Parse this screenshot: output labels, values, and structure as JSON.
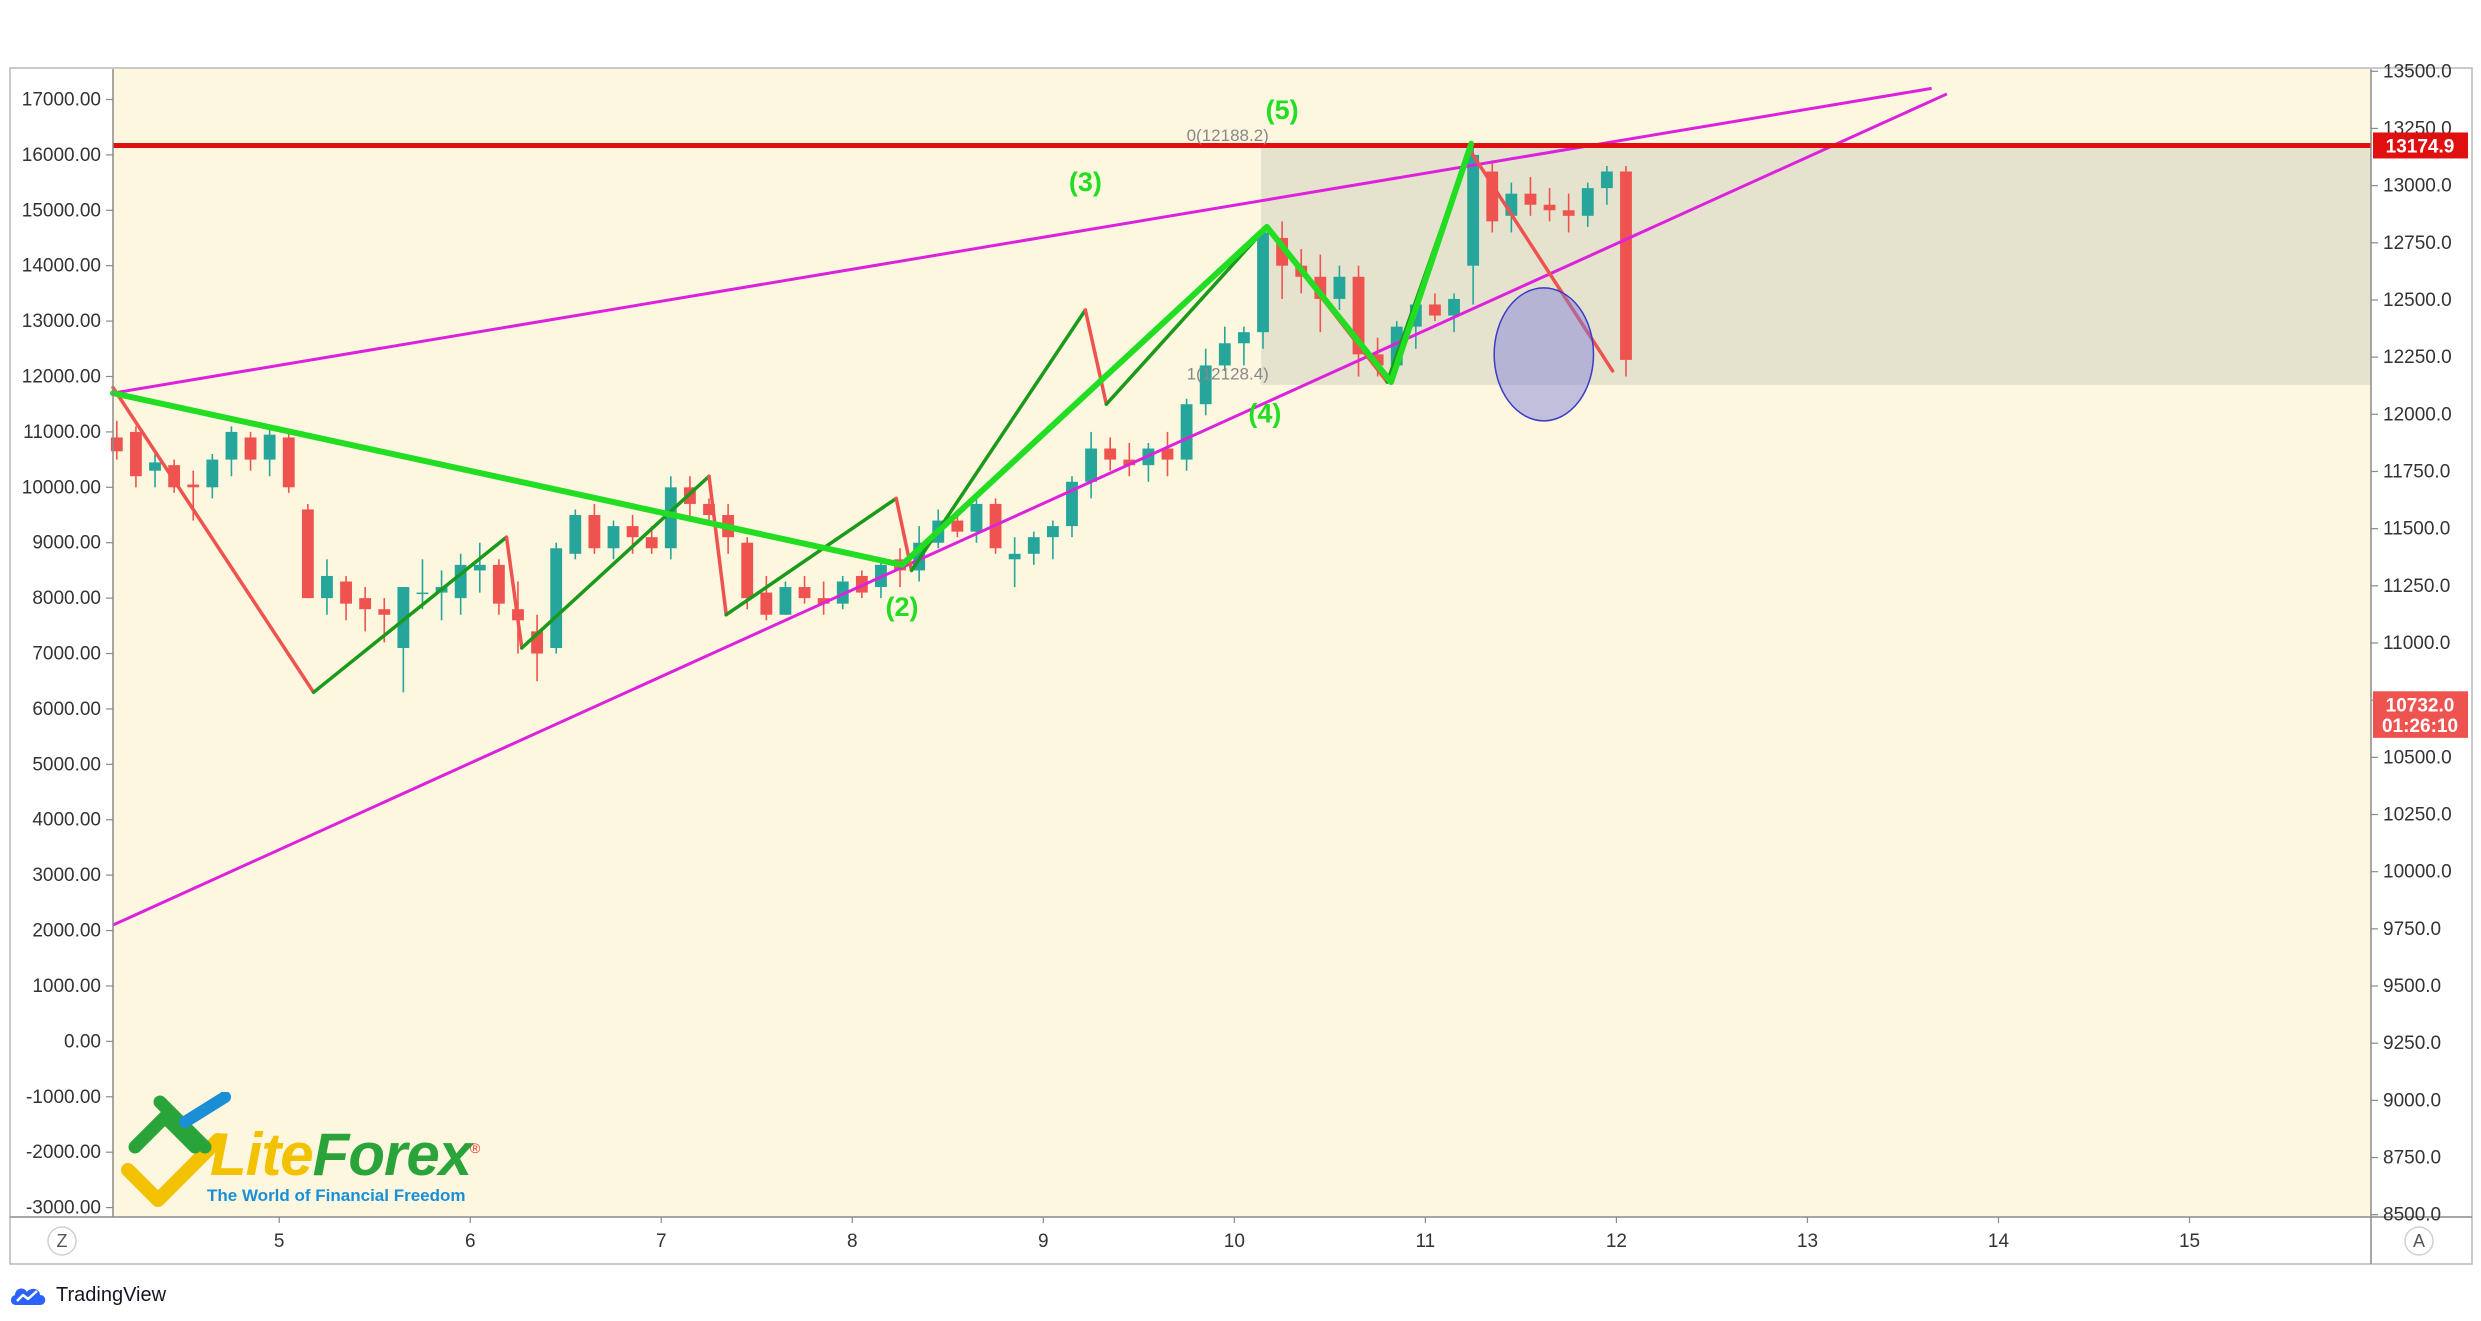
{
  "chart_data": {
    "type": "candlestick",
    "x_ticks": [
      "5",
      "6",
      "7",
      "8",
      "9",
      "10",
      "11",
      "12",
      "13",
      "14",
      "15"
    ],
    "xlim": [
      4.13,
      15.95
    ],
    "left_axis": {
      "ticks": [
        "17000.00",
        "16000.00",
        "15000.00",
        "14000.00",
        "13000.00",
        "12000.00",
        "11000.00",
        "10000.00",
        "9000.00",
        "8000.00",
        "7000.00",
        "6000.00",
        "5000.00",
        "4000.00",
        "3000.00",
        "2000.00",
        "1000.00",
        "0.00",
        "-1000.00",
        "-2000.00",
        "-3000.00"
      ],
      "ylim": [
        -3170,
        17550
      ]
    },
    "right_axis": {
      "ticks": [
        "13500.0",
        "13250.0",
        "13000.0",
        "12750.0",
        "12500.0",
        "12250.0",
        "12000.0",
        "11750.0",
        "11500.0",
        "11250.0",
        "11000.0",
        "10750.0",
        "10500.0",
        "10250.0",
        "10000.0",
        "9750.0",
        "9500.0",
        "9250.0",
        "9000.0",
        "8750.0",
        "8500.0"
      ],
      "ylim": [
        8490,
        13510
      ]
    },
    "candles": [
      [
        4.15,
        10900,
        11200,
        10500,
        10650
      ],
      [
        4.25,
        11000,
        11100,
        10000,
        10200
      ],
      [
        4.35,
        10300,
        10600,
        10000,
        10450
      ],
      [
        4.45,
        10400,
        10500,
        9900,
        10000
      ],
      [
        4.55,
        10050,
        10300,
        9400,
        10000
      ],
      [
        4.65,
        10000,
        10600,
        9800,
        10500
      ],
      [
        4.75,
        10500,
        11100,
        10200,
        11000
      ],
      [
        4.85,
        10900,
        11000,
        10300,
        10500
      ],
      [
        4.95,
        10500,
        11100,
        10200,
        10950
      ],
      [
        5.05,
        10900,
        11000,
        9900,
        10000
      ],
      [
        5.15,
        9600,
        9700,
        8000,
        8000
      ],
      [
        5.25,
        8000,
        8700,
        7700,
        8400
      ],
      [
        5.35,
        8300,
        8400,
        7600,
        7900
      ],
      [
        5.45,
        8000,
        8200,
        7400,
        7800
      ],
      [
        5.55,
        7800,
        8000,
        7200,
        7700
      ],
      [
        5.65,
        7100,
        8200,
        6300,
        8200
      ],
      [
        5.75,
        8100,
        8700,
        7800,
        8100
      ],
      [
        5.85,
        8100,
        8500,
        7600,
        8200
      ],
      [
        5.95,
        8000,
        8800,
        7700,
        8600
      ],
      [
        6.05,
        8500,
        9000,
        8100,
        8600
      ],
      [
        6.15,
        8600,
        8700,
        7700,
        7900
      ],
      [
        6.25,
        7800,
        8300,
        7000,
        7600
      ],
      [
        6.35,
        7400,
        7700,
        6500,
        7000
      ],
      [
        6.45,
        7100,
        9000,
        7000,
        8900
      ],
      [
        6.55,
        8800,
        9600,
        8700,
        9500
      ],
      [
        6.65,
        9500,
        9700,
        8800,
        8900
      ],
      [
        6.75,
        8900,
        9400,
        8700,
        9300
      ],
      [
        6.85,
        9300,
        9500,
        8800,
        9100
      ],
      [
        6.95,
        9100,
        9300,
        8800,
        8900
      ],
      [
        7.05,
        8900,
        10200,
        8700,
        10000
      ],
      [
        7.15,
        10000,
        10200,
        9400,
        9700
      ],
      [
        7.25,
        9700,
        9800,
        9300,
        9500
      ],
      [
        7.35,
        9500,
        9700,
        8800,
        9100
      ],
      [
        7.45,
        9000,
        9100,
        7800,
        8000
      ],
      [
        7.55,
        8100,
        8400,
        7600,
        7700
      ],
      [
        7.65,
        7700,
        8300,
        7700,
        8200
      ],
      [
        7.75,
        8200,
        8400,
        7900,
        8000
      ],
      [
        7.85,
        8000,
        8300,
        7700,
        7900
      ],
      [
        7.95,
        7900,
        8400,
        7800,
        8300
      ],
      [
        8.05,
        8400,
        8500,
        8000,
        8100
      ],
      [
        8.15,
        8200,
        8700,
        8000,
        8600
      ],
      [
        8.25,
        8700,
        8900,
        8200,
        8500
      ],
      [
        8.35,
        8500,
        9300,
        8300,
        9000
      ],
      [
        8.45,
        9000,
        9600,
        8900,
        9400
      ],
      [
        8.55,
        9400,
        9500,
        9100,
        9200
      ],
      [
        8.65,
        9200,
        9800,
        9000,
        9700
      ],
      [
        8.75,
        9700,
        9800,
        8800,
        8900
      ],
      [
        8.85,
        8700,
        9100,
        8200,
        8800
      ],
      [
        8.95,
        8800,
        9200,
        8600,
        9100
      ],
      [
        9.05,
        9100,
        9400,
        8700,
        9300
      ],
      [
        9.15,
        9300,
        10200,
        9100,
        10100
      ],
      [
        9.25,
        10100,
        11000,
        9800,
        10700
      ],
      [
        9.35,
        10700,
        10900,
        10300,
        10500
      ],
      [
        9.45,
        10500,
        10800,
        10200,
        10400
      ],
      [
        9.55,
        10400,
        10800,
        10100,
        10700
      ],
      [
        9.65,
        10700,
        11000,
        10200,
        10500
      ],
      [
        9.75,
        10500,
        11600,
        10300,
        11500
      ],
      [
        9.85,
        11500,
        12500,
        11300,
        12200
      ],
      [
        9.95,
        12200,
        12900,
        12100,
        12600
      ],
      [
        10.05,
        12600,
        12900,
        12200,
        12800
      ],
      [
        10.15,
        12800,
        14700,
        12500,
        14600
      ],
      [
        10.25,
        14500,
        14800,
        13400,
        14000
      ],
      [
        10.35,
        14000,
        14300,
        13500,
        13800
      ],
      [
        10.45,
        13800,
        14200,
        12800,
        13400
      ],
      [
        10.55,
        13400,
        14000,
        13200,
        13800
      ],
      [
        10.65,
        13800,
        14000,
        12000,
        12400
      ],
      [
        10.75,
        12400,
        12700,
        12000,
        12200
      ],
      [
        10.85,
        12200,
        13000,
        12100,
        12900
      ],
      [
        10.95,
        12900,
        13400,
        12500,
        13300
      ],
      [
        11.05,
        13300,
        13500,
        13000,
        13100
      ],
      [
        11.15,
        13100,
        13500,
        12800,
        13400
      ],
      [
        11.25,
        14000,
        16200,
        13300,
        16000
      ],
      [
        11.35,
        15700,
        15900,
        14600,
        14800
      ],
      [
        11.45,
        14900,
        15500,
        14600,
        15300
      ],
      [
        11.55,
        15300,
        15600,
        14900,
        15100
      ],
      [
        11.65,
        15100,
        15400,
        14800,
        15000
      ],
      [
        11.75,
        15000,
        15300,
        14600,
        14900
      ],
      [
        11.85,
        14900,
        15500,
        14700,
        15400
      ],
      [
        11.95,
        15400,
        15800,
        15100,
        15700
      ],
      [
        12.05,
        15700,
        15800,
        12000,
        12300
      ]
    ],
    "waves": {
      "zigzag": [
        [
          4.13,
          11800
        ],
        [
          5.18,
          6300
        ],
        [
          6.19,
          9100
        ],
        [
          6.27,
          7100
        ],
        [
          7.25,
          10200
        ],
        [
          7.34,
          7700
        ],
        [
          8.23,
          9800
        ],
        [
          8.31,
          8500
        ],
        [
          9.22,
          13200
        ],
        [
          9.33,
          11500
        ],
        [
          10.17,
          14700
        ],
        [
          10.8,
          11900
        ],
        [
          11.23,
          16100
        ],
        [
          11.98,
          12100
        ]
      ],
      "main_path": [
        [
          4.13,
          11700
        ],
        [
          8.26,
          8600
        ],
        [
          10.17,
          14700
        ],
        [
          10.82,
          11900
        ],
        [
          11.24,
          16200
        ]
      ]
    },
    "trendlines": [
      {
        "from": [
          4.13,
          11700
        ],
        "to": [
          13.65,
          17200
        ]
      },
      {
        "from": [
          4.13,
          2100
        ],
        "to": [
          13.73,
          17100
        ]
      }
    ],
    "horizontal_line": {
      "left_value": 16170,
      "tag": "13174.9",
      "tag_color": "#e01010"
    },
    "wave_labels": [
      {
        "text": "(2)",
        "x": 8.26,
        "y": 7680
      },
      {
        "text": "(3)",
        "x": 9.22,
        "y": 15350
      },
      {
        "text": "(4)",
        "x": 10.16,
        "y": 11170
      },
      {
        "text": "(5)",
        "x": 10.25,
        "y": 16650
      }
    ],
    "fib_labels": [
      {
        "text": "0(12188.2)",
        "x": 9.75,
        "y": 16250
      },
      {
        "text": "1(12128.4)",
        "x": 9.75,
        "y": 11950
      }
    ],
    "price_tags": [
      {
        "text": "10732.0",
        "right_value": 10732,
        "color": "#ef5350"
      },
      {
        "text": "01:26:10",
        "right_value": 10642,
        "color": "#ef5350"
      }
    ],
    "shaded_zone": {
      "x_from": 10.14,
      "y_top": 16180,
      "y_bottom": 11850
    },
    "ellipse": {
      "cx": 11.62,
      "cy": 12400,
      "rx": 0.26,
      "ry": 1200
    },
    "colors": {
      "background": "#fdf7df",
      "up": "#26a69a",
      "down": "#ef5350",
      "wave": "#22dd22",
      "wave_dark": "#1a9a1a",
      "trend": "#dd22dd",
      "red_line": "#e01010",
      "zone": "#dcdcc8",
      "ellipse": "#3b3bc8"
    }
  },
  "bottom_buttons": {
    "left": "Z",
    "right": "A"
  },
  "logo": {
    "lite": "Lite",
    "forex": "Forex",
    "registered": "®",
    "tagline": "The World of Financial Freedom"
  },
  "brand": {
    "label": "TradingView",
    "icon": "tradingview-cloud-icon"
  }
}
